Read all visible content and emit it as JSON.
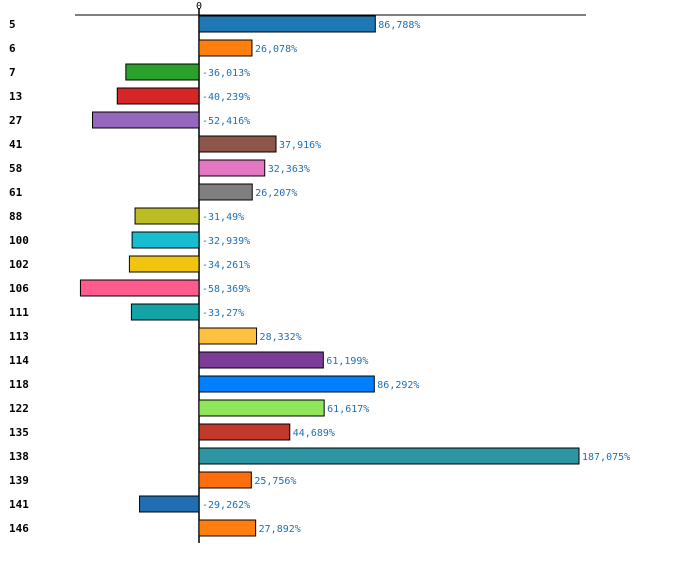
{
  "chart_data": {
    "type": "bar",
    "orientation": "horizontal",
    "title": "",
    "xlabel": "",
    "ylabel": "",
    "grid": false,
    "xlim": [
      -65,
      190
    ],
    "zero_tick_label": "0",
    "categories": [
      "5",
      "6",
      "7",
      "13",
      "27",
      "41",
      "58",
      "61",
      "88",
      "100",
      "102",
      "106",
      "111",
      "113",
      "114",
      "118",
      "122",
      "135",
      "138",
      "139",
      "141",
      "146"
    ],
    "values": [
      86.788,
      26.078,
      -36.013,
      -40.239,
      -52.416,
      37.916,
      32.363,
      26.207,
      -31.49,
      -32.939,
      -34.261,
      -58.369,
      -33.27,
      28.332,
      61.199,
      86.292,
      61.617,
      44.689,
      187.075,
      25.756,
      -29.262,
      27.892
    ],
    "value_labels": [
      "86,788%",
      "26,078%",
      "-36,013%",
      "-40,239%",
      "-52,416%",
      "37,916%",
      "32,363%",
      "26,207%",
      "-31,49%",
      "-32,939%",
      "-34,261%",
      "-58,369%",
      "-33,27%",
      "28,332%",
      "61,199%",
      "86,292%",
      "61,617%",
      "44,689%",
      "187,075%",
      "25,756%",
      "-29,262%",
      "27,892%"
    ],
    "colors": [
      "#1f77b4",
      "#ff7f0e",
      "#2ca02c",
      "#d62728",
      "#9467bd",
      "#8c564b",
      "#e377c2",
      "#7f7f7f",
      "#bcbd22",
      "#17becf",
      "#f1c40f",
      "#ff5b8f",
      "#13a5a5",
      "#ffbf3f",
      "#7d3c98",
      "#0080ff",
      "#8fe65a",
      "#c0392b",
      "#2e95a3",
      "#ff6e0e",
      "#1f6fb2",
      "#ff7f0e"
    ]
  }
}
